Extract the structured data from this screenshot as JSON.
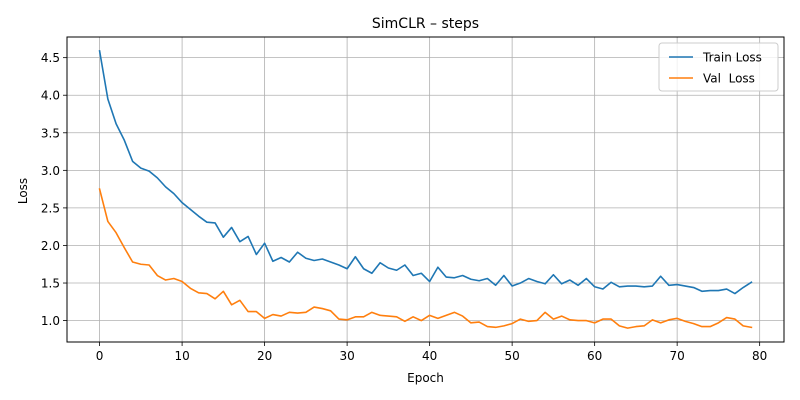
{
  "chart_data": {
    "type": "line",
    "title": "SimCLR – steps",
    "xlabel": "Epoch",
    "ylabel": "Loss",
    "xlim": [
      -3.95,
      82.95
    ],
    "ylim": [
      0.715,
      4.775
    ],
    "xticks": [
      0,
      10,
      20,
      30,
      40,
      50,
      60,
      70,
      80
    ],
    "yticks": [
      1.0,
      1.5,
      2.0,
      2.5,
      3.0,
      3.5,
      4.0,
      4.5
    ],
    "ytick_labels": [
      "1.0",
      "1.5",
      "2.0",
      "2.5",
      "3.0",
      "3.5",
      "4.0",
      "4.5"
    ],
    "grid": true,
    "legend_position": "top-right",
    "x": [
      0,
      1,
      2,
      3,
      4,
      5,
      6,
      7,
      8,
      9,
      10,
      11,
      12,
      13,
      14,
      15,
      16,
      17,
      18,
      19,
      20,
      21,
      22,
      23,
      24,
      25,
      26,
      27,
      28,
      29,
      30,
      31,
      32,
      33,
      34,
      35,
      36,
      37,
      38,
      39,
      40,
      41,
      42,
      43,
      44,
      45,
      46,
      47,
      48,
      49,
      50,
      51,
      52,
      53,
      54,
      55,
      56,
      57,
      58,
      59,
      60,
      61,
      62,
      63,
      64,
      65,
      66,
      67,
      68,
      69,
      70,
      71,
      72,
      73,
      74,
      75,
      76,
      77,
      78,
      79
    ],
    "series": [
      {
        "name": "Train Loss",
        "color": "#1f77b4",
        "values": [
          4.59,
          3.95,
          3.62,
          3.4,
          3.12,
          3.03,
          2.99,
          2.9,
          2.78,
          2.69,
          2.57,
          2.48,
          2.39,
          2.31,
          2.3,
          2.11,
          2.24,
          2.05,
          2.12,
          1.88,
          2.03,
          1.79,
          1.84,
          1.78,
          1.91,
          1.83,
          1.8,
          1.82,
          1.78,
          1.74,
          1.69,
          1.85,
          1.69,
          1.63,
          1.77,
          1.7,
          1.67,
          1.74,
          1.6,
          1.63,
          1.52,
          1.71,
          1.58,
          1.57,
          1.6,
          1.55,
          1.53,
          1.56,
          1.47,
          1.6,
          1.46,
          1.5,
          1.56,
          1.52,
          1.49,
          1.61,
          1.49,
          1.54,
          1.47,
          1.56,
          1.45,
          1.42,
          1.51,
          1.45,
          1.46,
          1.46,
          1.45,
          1.46,
          1.59,
          1.47,
          1.48,
          1.46,
          1.44,
          1.39,
          1.4,
          1.4,
          1.42,
          1.36,
          1.44,
          1.51
        ]
      },
      {
        "name": "Val  Loss",
        "color": "#ff7f0e",
        "values": [
          2.75,
          2.32,
          2.17,
          1.97,
          1.78,
          1.75,
          1.74,
          1.6,
          1.54,
          1.56,
          1.52,
          1.43,
          1.37,
          1.36,
          1.29,
          1.39,
          1.21,
          1.27,
          1.12,
          1.12,
          1.03,
          1.08,
          1.06,
          1.11,
          1.1,
          1.11,
          1.18,
          1.16,
          1.13,
          1.02,
          1.01,
          1.05,
          1.05,
          1.11,
          1.07,
          1.06,
          1.05,
          0.99,
          1.05,
          1.0,
          1.07,
          1.03,
          1.07,
          1.11,
          1.06,
          0.97,
          0.98,
          0.92,
          0.91,
          0.93,
          0.96,
          1.02,
          0.99,
          1.0,
          1.11,
          1.02,
          1.06,
          1.01,
          1.0,
          1.0,
          0.97,
          1.02,
          1.02,
          0.93,
          0.9,
          0.92,
          0.93,
          1.01,
          0.97,
          1.01,
          1.03,
          0.99,
          0.96,
          0.92,
          0.92,
          0.97,
          1.04,
          1.02,
          0.93,
          0.91
        ]
      }
    ]
  }
}
